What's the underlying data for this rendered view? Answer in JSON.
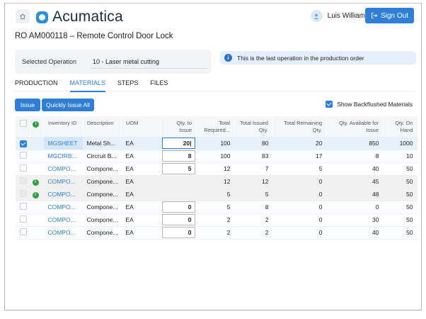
{
  "header": {
    "logo_text": "Acumatica",
    "user_name": "Luis Williams",
    "sign_out_label": "Sign Out"
  },
  "page": {
    "title": "RO AM000118 – Remote Control Door Lock"
  },
  "operation": {
    "label": "Selected Operation",
    "value": "10 - Laser metal cutting"
  },
  "info_banner": {
    "text": "This is the last operation in the production order"
  },
  "tabs": [
    {
      "label": "PRODUCTION",
      "active": false
    },
    {
      "label": "MATERIALS",
      "active": true
    },
    {
      "label": "STEPS",
      "active": false
    },
    {
      "label": "FILES",
      "active": false
    }
  ],
  "toolbar": {
    "issue_label": "Issue",
    "quick_issue_label": "Quickly Issue All",
    "show_backflushed_label": "Show Backflushed Materials",
    "show_backflushed_checked": true
  },
  "table": {
    "columns": {
      "inventory_id": "Inventory ID",
      "description": "Description",
      "uom": "UOM",
      "qty_to_issue": "Qty. to Issue",
      "total_required": "Total Required...",
      "total_issued": "Total Issued Qty.",
      "total_remaining": "Total Remaining Qty.",
      "qty_available": "Qty. Available for Issue",
      "qty_on_hand": "Qty. On Hand"
    },
    "rows": [
      {
        "checked": true,
        "backflushed": false,
        "inventory_id": "MGSHEET",
        "description": "Metal Sh...",
        "uom": "EA",
        "qty_to_issue": "20|",
        "total_required": "100",
        "total_issued": "80",
        "total_remaining": "20",
        "qty_available": "850",
        "qty_on_hand": "1000"
      },
      {
        "checked": false,
        "backflushed": false,
        "inventory_id": "MGCIRB...",
        "description": "Circruit B...",
        "uom": "EA",
        "qty_to_issue": "8",
        "total_required": "100",
        "total_issued": "83",
        "total_remaining": "17",
        "qty_available": "8",
        "qty_on_hand": "10"
      },
      {
        "checked": false,
        "backflushed": false,
        "inventory_id": "COMPO...",
        "description": "Compone...",
        "uom": "EA",
        "qty_to_issue": "5",
        "total_required": "12",
        "total_issued": "7",
        "total_remaining": "5",
        "qty_available": "40",
        "qty_on_hand": "50"
      },
      {
        "checked": false,
        "backflushed": true,
        "inventory_id": "COMPO...",
        "description": "Compone...",
        "uom": "EA",
        "qty_to_issue": "",
        "total_required": "12",
        "total_issued": "12",
        "total_remaining": "0",
        "qty_available": "45",
        "qty_on_hand": "50"
      },
      {
        "checked": false,
        "backflushed": true,
        "inventory_id": "COMPO...",
        "description": "Compone...",
        "uom": "EA",
        "qty_to_issue": "",
        "total_required": "5",
        "total_issued": "5",
        "total_remaining": "0",
        "qty_available": "48",
        "qty_on_hand": "50"
      },
      {
        "checked": false,
        "backflushed": false,
        "inventory_id": "COMPO...",
        "description": "Compone...",
        "uom": "EA",
        "qty_to_issue": "0",
        "total_required": "5",
        "total_issued": "8",
        "total_remaining": "0",
        "qty_available": "0",
        "qty_on_hand": "50"
      },
      {
        "checked": false,
        "backflushed": false,
        "inventory_id": "COMPO...",
        "description": "Compone...",
        "uom": "EA",
        "qty_to_issue": "0",
        "total_required": "2",
        "total_issued": "2",
        "total_remaining": "0",
        "qty_available": "30",
        "qty_on_hand": "50"
      },
      {
        "checked": false,
        "backflushed": false,
        "inventory_id": "COMPO...",
        "description": "Compone...",
        "uom": "EA",
        "qty_to_issue": "0",
        "total_required": "2",
        "total_issued": "2",
        "total_remaining": "0",
        "qty_available": "40",
        "qty_on_hand": "50"
      }
    ]
  },
  "colors": {
    "accent": "#2f7fd6",
    "backflushed_indicator": "#2ea043",
    "info_bg": "#e3effb"
  }
}
